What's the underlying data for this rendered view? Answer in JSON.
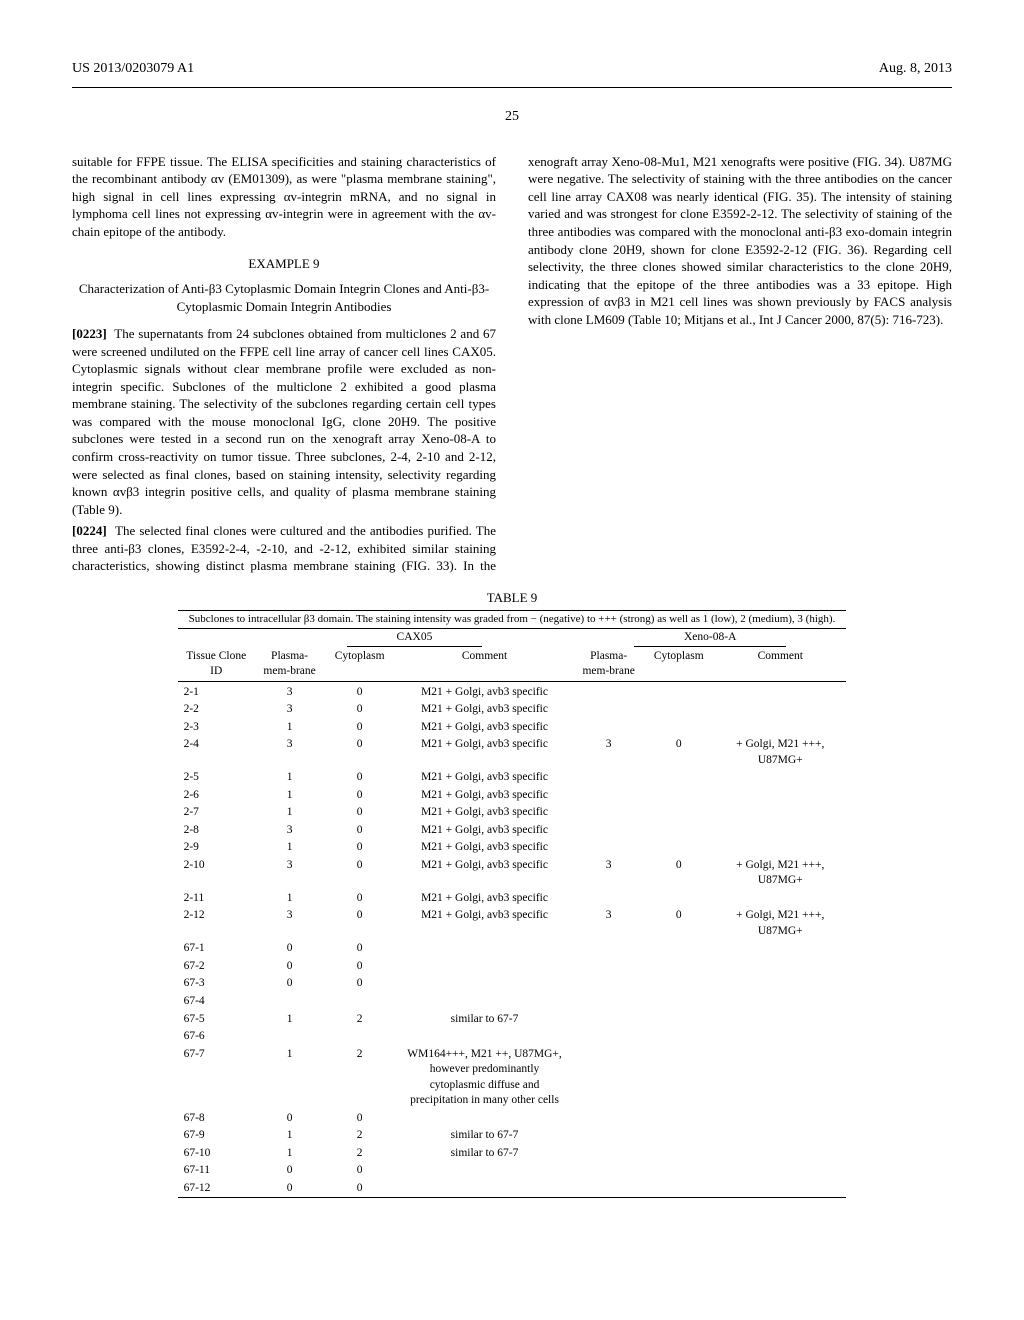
{
  "header": {
    "doc_number": "US 2013/0203079 A1",
    "date": "Aug. 8, 2013",
    "page_number": "25"
  },
  "col1": {
    "p_intro": "suitable for FFPE tissue. The ELISA specificities and staining characteristics of the recombinant antibody αv (EM01309), as were \"plasma membrane staining\", high signal in cell lines expressing αv-integrin mRNA, and no signal in lymphoma cell lines not expressing αv-integrin were in agreement with the αv-chain epitope of the antibody.",
    "example_label": "EXAMPLE 9",
    "example_title": "Characterization of Anti-β3 Cytoplasmic Domain Integrin Clones and Anti-β3-Cytoplasmic Domain Integrin Antibodies",
    "p0223_num": "[0223]",
    "p0223": "The supernatants from 24 subclones obtained from multiclones 2 and 67 were screened undiluted on the FFPE cell line array of cancer cell lines CAX05. Cytoplasmic signals without clear membrane profile were excluded as non-integrin specific. Subclones of the multiclone 2 exhibited a good plasma membrane staining. The selectivity of the subclones regarding certain cell types was compared with the mouse monoclonal IgG, clone 20H9. The positive subclones were tested in a second run on the xenograft array Xeno-08-A to confirm cross-reactivity on tumor tissue. Three subclones, 2-4, 2-10 and 2-12, were selected as final clones, based on staining intensity, selectivity regarding known αvβ3 integrin positive cells, and quality of plasma membrane staining (Table 9)."
  },
  "col2": {
    "p0224_num": "[0224]",
    "p0224": "The selected final clones were cultured and the antibodies purified. The three anti-β3 clones, E3592-2-4, -2-10, and -2-12, exhibited similar staining characteristics, showing distinct plasma membrane staining (FIG. 33). In the xenograft array Xeno-08-Mu1, M21 xenografts were positive (FIG. 34). U87MG were negative. The selectivity of staining with the three antibodies on the cancer cell line array CAX08 was nearly identical (FIG. 35). The intensity of staining varied and was strongest for clone E3592-2-12. The selectivity of staining of the three antibodies was compared with the monoclonal anti-β3 exo-domain integrin antibody clone 20H9, shown for clone E3592-2-12 (FIG. 36). Regarding cell selectivity, the three clones showed similar characteristics to the clone 20H9, indicating that the epitope of the three antibodies was a 33 epitope. High expression of αvβ3 in M21 cell lines was shown previously by FACS analysis with clone LM609 (Table 10; Mitjans et al., Int J Cancer 2000, 87(5): 716-723)."
  },
  "table9": {
    "label": "TABLE 9",
    "caption": "Subclones to intracellular β3 domain. The staining intensity was graded from − (negative) to +++ (strong) as well as 1 (low), 2 (medium), 3 (high).",
    "group1": "CAX05",
    "group2": "Xeno-08-A",
    "headers": {
      "c1": "Tissue Clone ID",
      "c2": "Plasma-mem-brane",
      "c3": "Cytoplasm",
      "c4": "Comment",
      "c5": "Plasma-mem-brane",
      "c6": "Cytoplasm",
      "c7": "Comment"
    },
    "rows": [
      {
        "id": "2-1",
        "pm": "3",
        "cy": "0",
        "cm": "M21 + Golgi, avb3 specific",
        "pm2": "",
        "cy2": "",
        "cm2": ""
      },
      {
        "id": "2-2",
        "pm": "3",
        "cy": "0",
        "cm": "M21 + Golgi, avb3 specific",
        "pm2": "",
        "cy2": "",
        "cm2": ""
      },
      {
        "id": "2-3",
        "pm": "1",
        "cy": "0",
        "cm": "M21 + Golgi, avb3 specific",
        "pm2": "",
        "cy2": "",
        "cm2": ""
      },
      {
        "id": "2-4",
        "pm": "3",
        "cy": "0",
        "cm": "M21 + Golgi, avb3 specific",
        "pm2": "3",
        "cy2": "0",
        "cm2": "+ Golgi, M21 +++, U87MG+"
      },
      {
        "id": "2-5",
        "pm": "1",
        "cy": "0",
        "cm": "M21 + Golgi, avb3 specific",
        "pm2": "",
        "cy2": "",
        "cm2": ""
      },
      {
        "id": "2-6",
        "pm": "1",
        "cy": "0",
        "cm": "M21 + Golgi, avb3 specific",
        "pm2": "",
        "cy2": "",
        "cm2": ""
      },
      {
        "id": "2-7",
        "pm": "1",
        "cy": "0",
        "cm": "M21 + Golgi, avb3 specific",
        "pm2": "",
        "cy2": "",
        "cm2": ""
      },
      {
        "id": "2-8",
        "pm": "3",
        "cy": "0",
        "cm": "M21 + Golgi, avb3 specific",
        "pm2": "",
        "cy2": "",
        "cm2": ""
      },
      {
        "id": "2-9",
        "pm": "1",
        "cy": "0",
        "cm": "M21 + Golgi, avb3 specific",
        "pm2": "",
        "cy2": "",
        "cm2": ""
      },
      {
        "id": "2-10",
        "pm": "3",
        "cy": "0",
        "cm": "M21 + Golgi, avb3 specific",
        "pm2": "3",
        "cy2": "0",
        "cm2": "+ Golgi, M21 +++, U87MG+"
      },
      {
        "id": "2-11",
        "pm": "1",
        "cy": "0",
        "cm": "M21 + Golgi, avb3 specific",
        "pm2": "",
        "cy2": "",
        "cm2": ""
      },
      {
        "id": "2-12",
        "pm": "3",
        "cy": "0",
        "cm": "M21 + Golgi, avb3 specific",
        "pm2": "3",
        "cy2": "0",
        "cm2": "+ Golgi, M21 +++, U87MG+"
      },
      {
        "id": "67-1",
        "pm": "0",
        "cy": "0",
        "cm": "",
        "pm2": "",
        "cy2": "",
        "cm2": ""
      },
      {
        "id": "67-2",
        "pm": "0",
        "cy": "0",
        "cm": "",
        "pm2": "",
        "cy2": "",
        "cm2": ""
      },
      {
        "id": "67-3",
        "pm": "0",
        "cy": "0",
        "cm": "",
        "pm2": "",
        "cy2": "",
        "cm2": ""
      },
      {
        "id": "67-4",
        "pm": "",
        "cy": "",
        "cm": "",
        "pm2": "",
        "cy2": "",
        "cm2": ""
      },
      {
        "id": "67-5",
        "pm": "1",
        "cy": "2",
        "cm": "similar to 67-7",
        "pm2": "",
        "cy2": "",
        "cm2": ""
      },
      {
        "id": "67-6",
        "pm": "",
        "cy": "",
        "cm": "",
        "pm2": "",
        "cy2": "",
        "cm2": ""
      },
      {
        "id": "67-7",
        "pm": "1",
        "cy": "2",
        "cm": "WM164+++, M21 ++, U87MG+, however predominantly cytoplasmic diffuse and precipitation in many other cells",
        "pm2": "",
        "cy2": "",
        "cm2": ""
      },
      {
        "id": "67-8",
        "pm": "0",
        "cy": "0",
        "cm": "",
        "pm2": "",
        "cy2": "",
        "cm2": ""
      },
      {
        "id": "67-9",
        "pm": "1",
        "cy": "2",
        "cm": "similar to 67-7",
        "pm2": "",
        "cy2": "",
        "cm2": ""
      },
      {
        "id": "67-10",
        "pm": "1",
        "cy": "2",
        "cm": "similar to 67-7",
        "pm2": "",
        "cy2": "",
        "cm2": ""
      },
      {
        "id": "67-11",
        "pm": "0",
        "cy": "0",
        "cm": "",
        "pm2": "",
        "cy2": "",
        "cm2": ""
      },
      {
        "id": "67-12",
        "pm": "0",
        "cy": "0",
        "cm": "",
        "pm2": "",
        "cy2": "",
        "cm2": ""
      }
    ]
  }
}
